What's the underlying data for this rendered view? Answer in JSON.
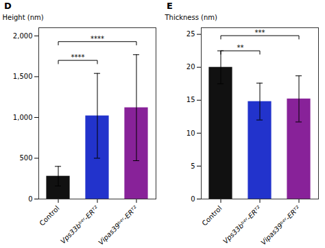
{
  "chart_data": [
    {
      "type": "bar",
      "title": "D",
      "categories": [
        "Control",
        "Vps33bᵇᵉʳ-ERᵀ²",
        "Vipas39ᵇᵉʳ-ERᵀ²"
      ],
      "values": [
        280,
        1020,
        1120
      ],
      "errors": [
        120,
        520,
        650
      ],
      "colors": [
        "#111111",
        "#2233cc",
        "#882299"
      ],
      "ylabel": "Height (nm)",
      "ylim": [
        0,
        2100
      ],
      "yticks": [
        0,
        500,
        1000,
        1500,
        2000
      ],
      "grid": false,
      "annotations": [
        {
          "from": "Control",
          "to": "Vps33bᵇᵉʳ-ERᵀ²",
          "y": 1700,
          "text": "****"
        },
        {
          "from": "Control",
          "to": "Vipas39ᵇᵉʳ-ERᵀ²",
          "y": 1930,
          "text": "****"
        }
      ]
    },
    {
      "type": "bar",
      "title": "E",
      "categories": [
        "Control",
        "Vps33bᵇᵉʳ-ERᵀ²",
        "Vipas39ᵇᵉʳ-ERᵀ²"
      ],
      "values": [
        20.0,
        14.8,
        15.2
      ],
      "errors": [
        2.5,
        2.8,
        3.5
      ],
      "colors": [
        "#111111",
        "#2233cc",
        "#882299"
      ],
      "ylabel": "Thickness (nm)",
      "ylim": [
        0,
        26
      ],
      "yticks": [
        0,
        5,
        10,
        15,
        20,
        25
      ],
      "grid": false,
      "annotations": [
        {
          "from": "Control",
          "to": "Vps33bᵇᵉʳ-ERᵀ²",
          "y": 22.5,
          "text": "**"
        },
        {
          "from": "Control",
          "to": "Vipas39ᵇᵉʳ-ERᵀ²",
          "y": 24.8,
          "text": "***"
        }
      ]
    }
  ]
}
